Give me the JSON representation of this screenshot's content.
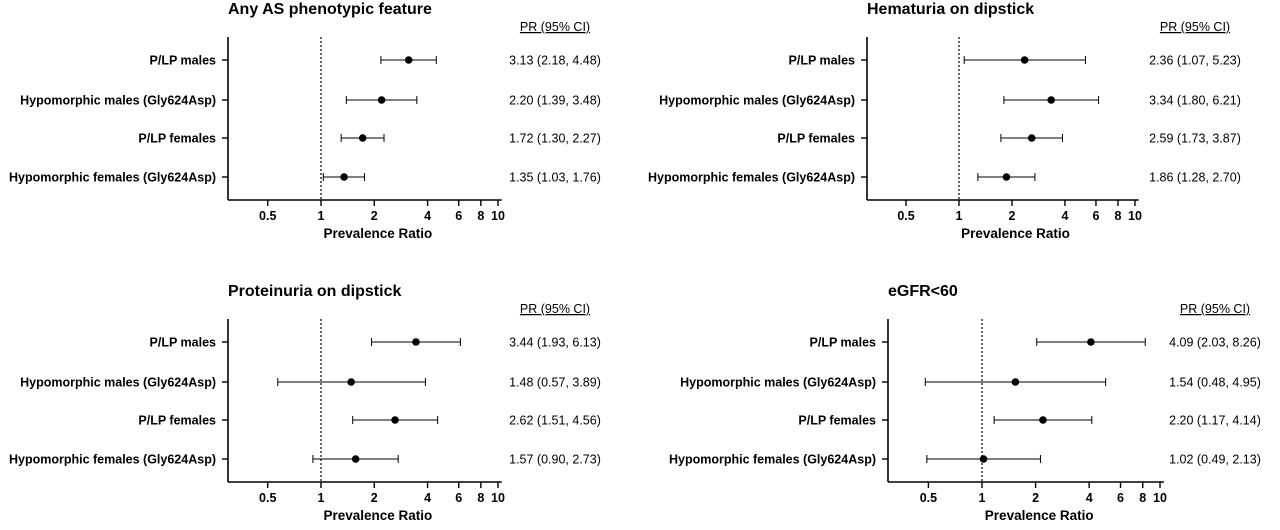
{
  "chart_data": [
    {
      "type": "forest",
      "title": "Any AS phenotypic feature",
      "xlabel": "Prevalence Ratio",
      "xscale": "log",
      "xlim": [
        0.3,
        10.5
      ],
      "xticks": [
        0.5,
        1,
        2,
        4,
        6,
        8,
        10
      ],
      "xtick_labels": [
        "0.5",
        "1",
        "2",
        "4",
        "6",
        "8",
        "10"
      ],
      "reference_line": 1,
      "pr_header": "PR (95% CI)",
      "rows": [
        {
          "label": "P/LP males",
          "value": 3.13,
          "lower": 2.18,
          "upper": 4.48,
          "text": "3.13 (2.18, 4.48)"
        },
        {
          "label": "Hypomorphic males (Gly624Asp)",
          "value": 2.2,
          "lower": 1.39,
          "upper": 3.48,
          "text": "2.20 (1.39, 3.48)"
        },
        {
          "label": "P/LP females",
          "value": 1.72,
          "lower": 1.3,
          "upper": 2.27,
          "text": "1.72 (1.30, 2.27)"
        },
        {
          "label": "Hypomorphic females (Gly624Asp)",
          "value": 1.35,
          "lower": 1.03,
          "upper": 1.76,
          "text": "1.35 (1.03, 1.76)"
        }
      ]
    },
    {
      "type": "forest",
      "title": "Hematuria on dipstick",
      "xlabel": "Prevalence Ratio",
      "xscale": "log",
      "xlim": [
        0.3,
        10.5
      ],
      "xticks": [
        0.5,
        1,
        2,
        4,
        6,
        8,
        10
      ],
      "xtick_labels": [
        "0.5",
        "1",
        "2",
        "4",
        "6",
        "8",
        "10"
      ],
      "reference_line": 1,
      "pr_header": "PR (95% CI)",
      "rows": [
        {
          "label": "P/LP males",
          "value": 2.36,
          "lower": 1.07,
          "upper": 5.23,
          "text": "2.36 (1.07, 5.23)"
        },
        {
          "label": "Hypomorphic males (Gly624Asp)",
          "value": 3.34,
          "lower": 1.8,
          "upper": 6.21,
          "text": "3.34 (1.80, 6.21)"
        },
        {
          "label": "P/LP females",
          "value": 2.59,
          "lower": 1.73,
          "upper": 3.87,
          "text": "2.59 (1.73, 3.87)"
        },
        {
          "label": "Hypomorphic females (Gly624Asp)",
          "value": 1.86,
          "lower": 1.28,
          "upper": 2.7,
          "text": "1.86 (1.28, 2.70)"
        }
      ]
    },
    {
      "type": "forest",
      "title": "Proteinuria on dipstick",
      "xlabel": "Prevalence Ratio",
      "xscale": "log",
      "xlim": [
        0.3,
        10.5
      ],
      "xticks": [
        0.5,
        1,
        2,
        4,
        6,
        8,
        10
      ],
      "xtick_labels": [
        "0.5",
        "1",
        "2",
        "4",
        "6",
        "8",
        "10"
      ],
      "reference_line": 1,
      "pr_header": "PR (95% CI)",
      "rows": [
        {
          "label": "P/LP males",
          "value": 3.44,
          "lower": 1.93,
          "upper": 6.13,
          "text": "3.44 (1.93, 6.13)"
        },
        {
          "label": "Hypomorphic males (Gly624Asp)",
          "value": 1.48,
          "lower": 0.57,
          "upper": 3.89,
          "text": "1.48 (0.57, 3.89)"
        },
        {
          "label": "P/LP females",
          "value": 2.62,
          "lower": 1.51,
          "upper": 4.56,
          "text": "2.62 (1.51, 4.56)"
        },
        {
          "label": "Hypomorphic females (Gly624Asp)",
          "value": 1.57,
          "lower": 0.9,
          "upper": 2.73,
          "text": "1.57 (0.90, 2.73)"
        }
      ]
    },
    {
      "type": "forest",
      "title": "eGFR<60",
      "xlabel": "Prevalence Ratio",
      "xscale": "log",
      "xlim": [
        0.3,
        10.5
      ],
      "xticks": [
        0.5,
        1,
        2,
        4,
        6,
        8,
        10
      ],
      "xtick_labels": [
        "0.5",
        "1",
        "2",
        "4",
        "6",
        "8",
        "10"
      ],
      "reference_line": 1,
      "pr_header": "PR (95% CI)",
      "rows": [
        {
          "label": "P/LP males",
          "value": 4.09,
          "lower": 2.03,
          "upper": 8.26,
          "text": "4.09 (2.03, 8.26)"
        },
        {
          "label": "Hypomorphic males (Gly624Asp)",
          "value": 1.54,
          "lower": 0.48,
          "upper": 4.95,
          "text": "1.54 (0.48, 4.95)"
        },
        {
          "label": "P/LP females",
          "value": 2.2,
          "lower": 1.17,
          "upper": 4.14,
          "text": "2.20 (1.17, 4.14)"
        },
        {
          "label": "Hypomorphic females (Gly624Asp)",
          "value": 1.02,
          "lower": 0.49,
          "upper": 2.13,
          "text": "1.02 (0.49, 2.13)"
        }
      ]
    }
  ]
}
